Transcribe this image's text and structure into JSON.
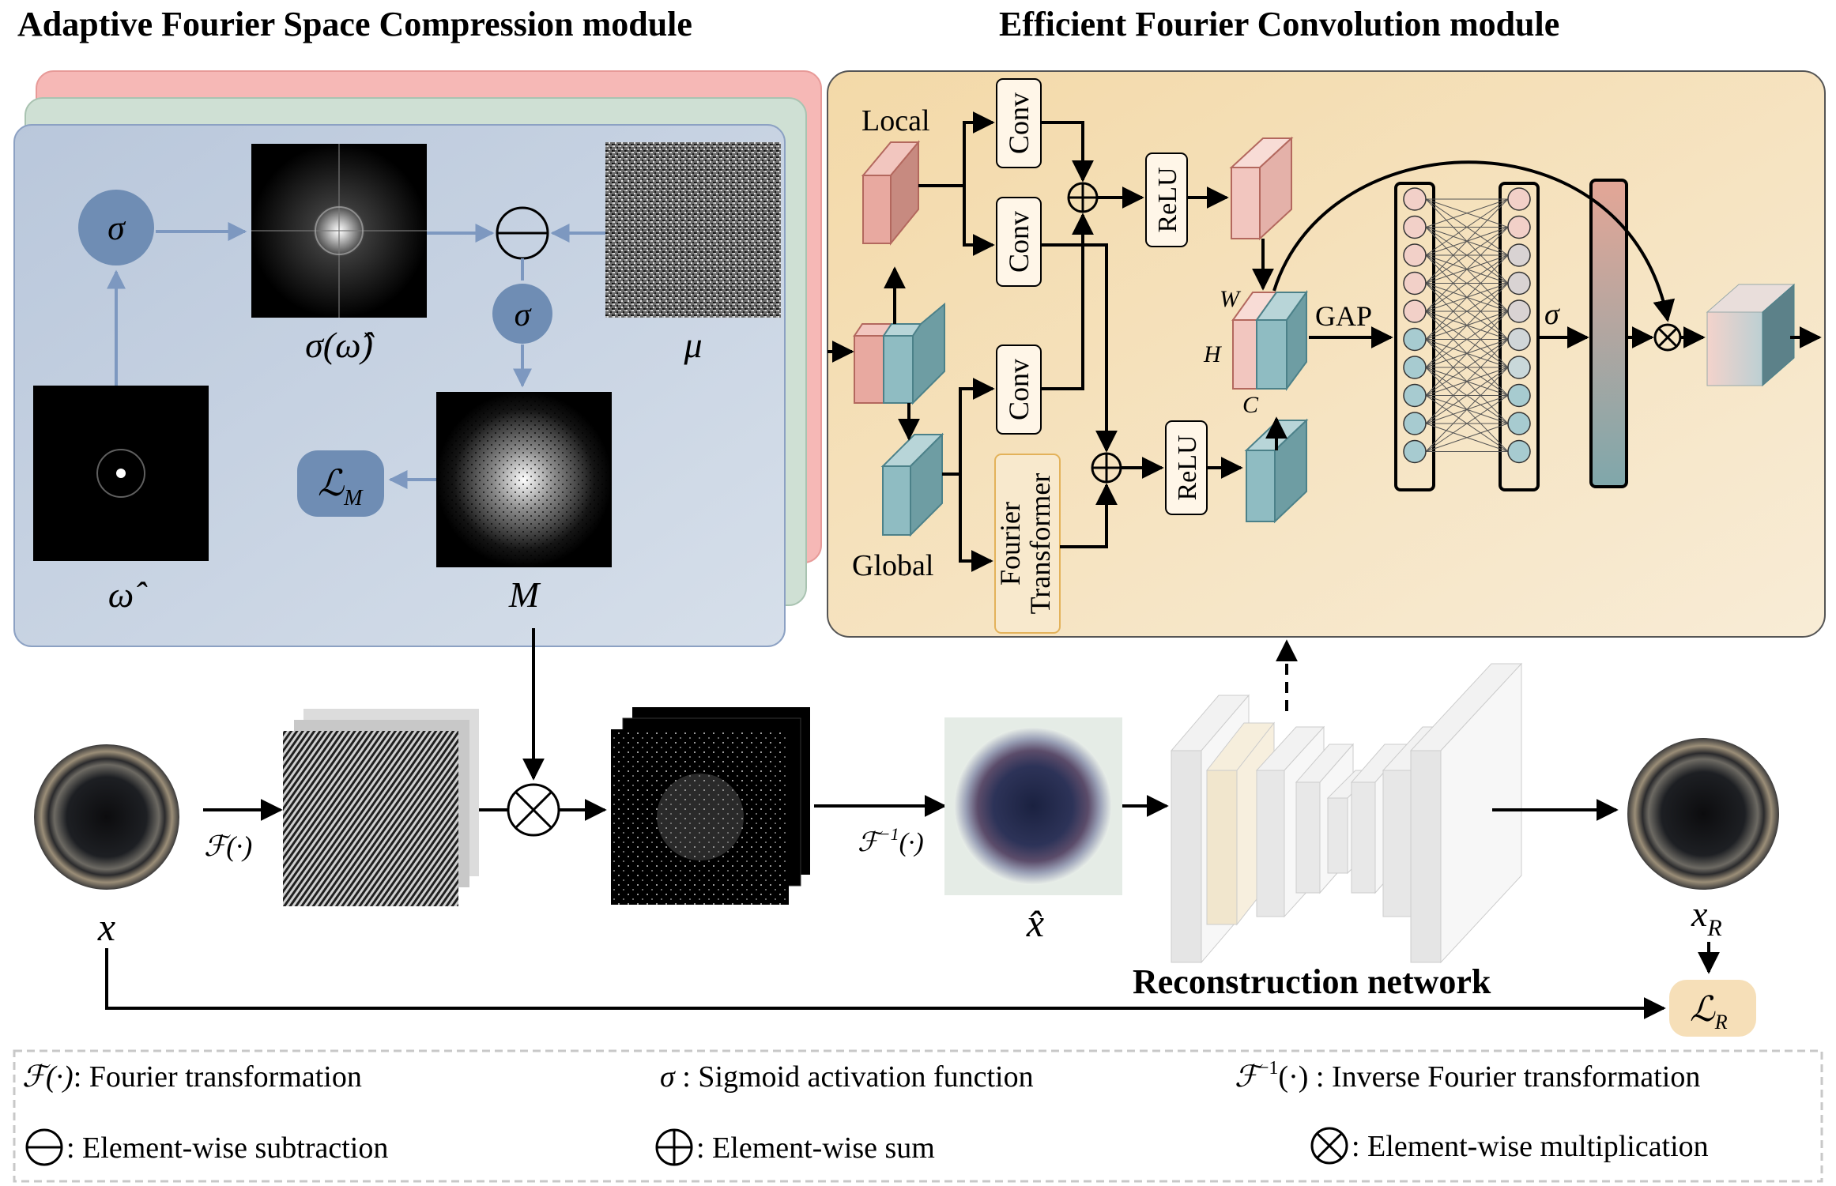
{
  "titles": {
    "afsc": "Adaptive Fourier Space Compression module",
    "efc": "Efficient Fourier Convolution module",
    "reconstruction": "Reconstruction  network"
  },
  "afsc": {
    "sigma_top": "σ",
    "sigma_mid": "σ",
    "sigma_omega_label": "σ(ω̂)",
    "mu_label": "μ",
    "omega_label": "ω̂",
    "M_label": "M",
    "loss_M": "ℒ",
    "loss_M_sub": "M"
  },
  "efc": {
    "local": "Local",
    "global": "Global",
    "conv_1": "Conv",
    "conv_2": "Conv",
    "conv_3": "Conv",
    "relu_1": "ReLU",
    "relu_2": "ReLU",
    "fourier_transformer_1": "Fourier",
    "fourier_transformer_2": "Transformer",
    "dim_W": "W",
    "dim_H": "H",
    "dim_C": "C",
    "gap": "GAP",
    "sigma": "σ"
  },
  "pipeline": {
    "x_label": "x",
    "fourier_op": "ℱ(·)",
    "inverse_op_main": "ℱ",
    "inverse_op_sup": "−1",
    "inverse_op_tail": "(·)",
    "xhat_label": "x̂",
    "xr_label": "x",
    "xr_sub": "R",
    "loss_R": "ℒ",
    "loss_R_sub": "R"
  },
  "legend": {
    "fourier_sym": "ℱ(·)",
    "fourier_text": ": Fourier transformation",
    "sigma_sym": "σ",
    "sigma_text": " : Sigmoid activation function",
    "inverse_sym_main": "ℱ",
    "inverse_sym_sup": "−1",
    "inverse_sym_tail": "(·)",
    "inverse_text": " : Inverse Fourier transformation",
    "sub_text": ": Element-wise subtraction",
    "sum_text": ": Element-wise sum",
    "mul_text": ": Element-wise multiplication"
  },
  "colors": {
    "afsc_bg": "#c3cfe0",
    "afsc_layer_green": "#ccddd2",
    "afsc_layer_red": "#f5b5b5",
    "efc_bg": "#f4dfb6",
    "sigma_node": "#6f8db4",
    "arrow_blue": "#7d98c0",
    "cube_red": "#e8a9a0",
    "cube_teal": "#8fbcc2",
    "loss_r_bg": "#f6dfb8"
  }
}
